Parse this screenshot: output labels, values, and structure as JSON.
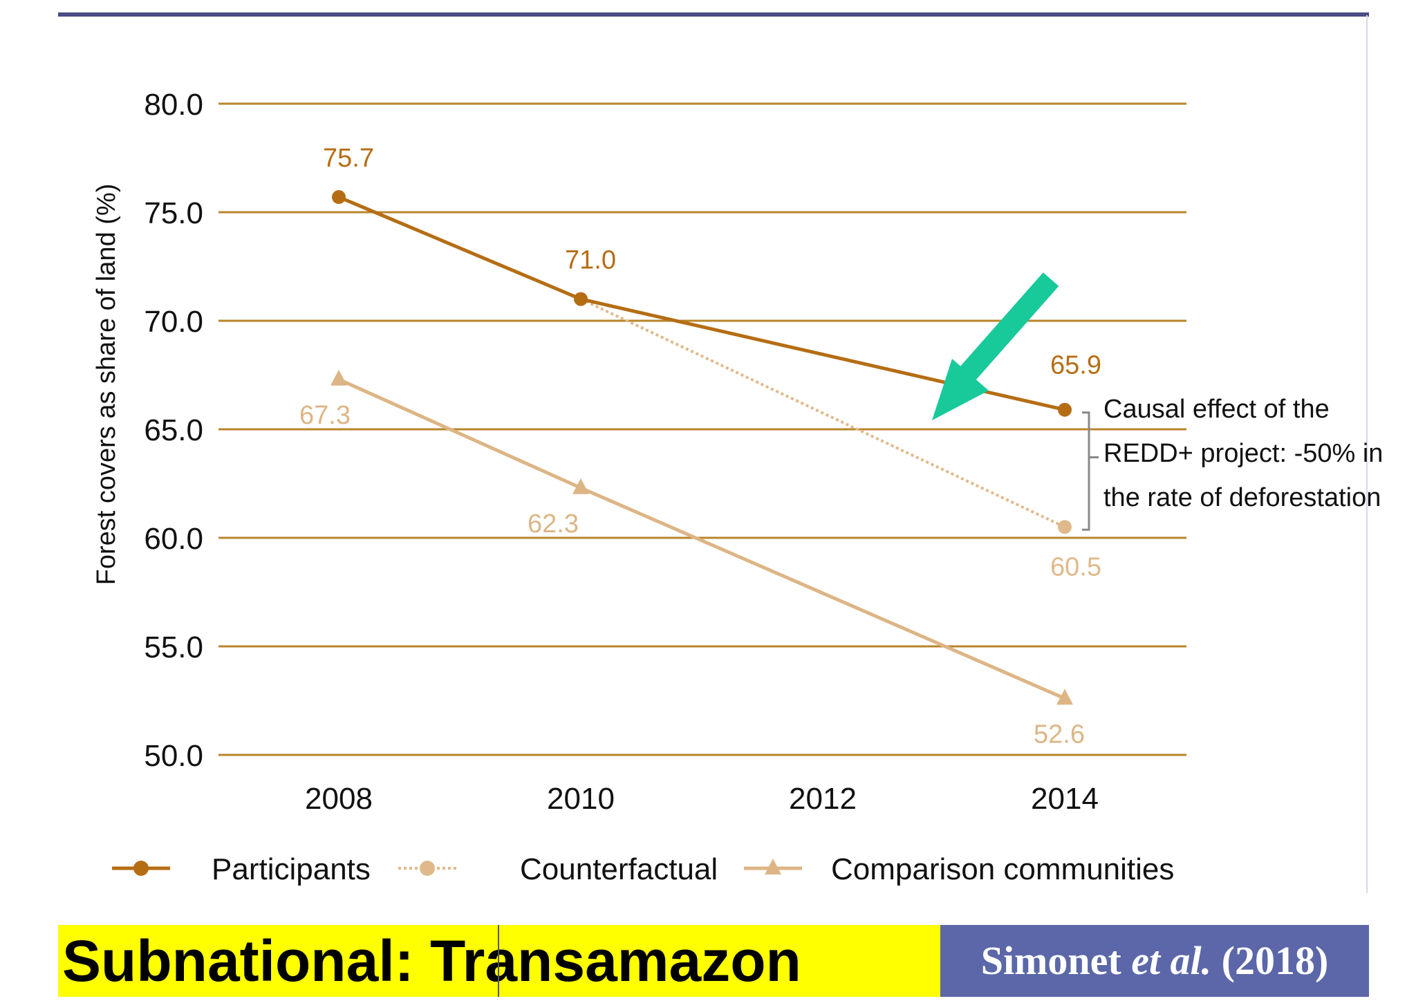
{
  "banner": {
    "title": "Subnational: Transamazon",
    "citation_author": "Simonet",
    "citation_etal": "et al.",
    "citation_year": "(2018)"
  },
  "colors": {
    "participants": "#b56d14",
    "counterfactual": "#e0b98a",
    "comparison": "#ddb585",
    "gridline": "#b8852a",
    "arrow": "#18c99a",
    "banner_title_bg": "#ffff00",
    "banner_citation_bg": "#5b67a8"
  },
  "chart_data": {
    "type": "line",
    "ylabel": "Forest covers as share of land (%)",
    "xlabel": "",
    "ylim": [
      50.0,
      80.0
    ],
    "yticks": [
      "50.0",
      "55.0",
      "60.0",
      "65.0",
      "70.0",
      "75.0",
      "80.0"
    ],
    "x_categories": [
      "2008",
      "2010",
      "2012",
      "2014"
    ],
    "grid": true,
    "legend_position": "bottom",
    "series": [
      {
        "name": "Participants",
        "key": "participants",
        "marker": "circle",
        "style": "solid",
        "points": [
          {
            "x": "2008",
            "y": 75.7,
            "label": "75.7"
          },
          {
            "x": "2010",
            "y": 71.0,
            "label": "71.0"
          },
          {
            "x": "2014",
            "y": 65.9,
            "label": "65.9"
          }
        ]
      },
      {
        "name": "Counterfactual",
        "key": "counterfactual",
        "marker": "circle",
        "style": "dotted",
        "points": [
          {
            "x": "2010",
            "y": 71.0,
            "label": ""
          },
          {
            "x": "2014",
            "y": 60.5,
            "label": "60.5"
          }
        ]
      },
      {
        "name": "Comparison communities",
        "key": "comparison",
        "marker": "triangle",
        "style": "solid",
        "points": [
          {
            "x": "2008",
            "y": 67.3,
            "label": "67.3"
          },
          {
            "x": "2010",
            "y": 62.3,
            "label": "62.3"
          },
          {
            "x": "2014",
            "y": 52.6,
            "label": "52.6"
          }
        ]
      }
    ],
    "annotation": {
      "lines": [
        "Causal effect of the",
        "REDD+ project: -50% in",
        "the rate of deforestation"
      ],
      "from_y": 65.9,
      "to_y": 60.5
    }
  }
}
